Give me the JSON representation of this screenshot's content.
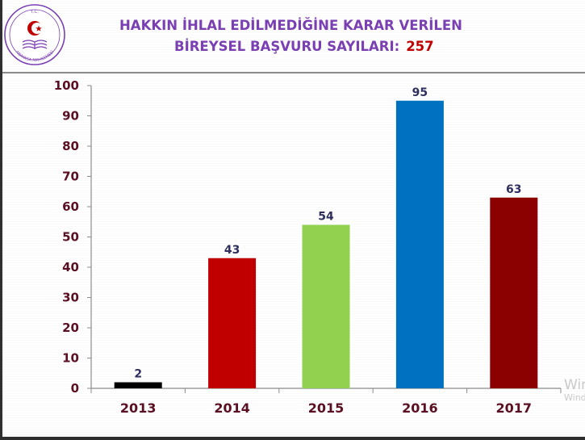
{
  "logo": {
    "top_text": "T.C.",
    "bottom_text": "ANAYASA MAHKEMESİ",
    "icon": "crescent-star-book-emblem",
    "colors": {
      "ring": "#7a3fb3",
      "emblem": "#c00000"
    }
  },
  "header": {
    "title_line1": "HAKKIN İHLAL EDİLMEDİĞİNE KARAR VERİLEN",
    "title_line2": "BİREYSEL BAŞVURU SAYILARI:",
    "total": "257"
  },
  "watermark": {
    "line1": "Windows'u Etkinleştir",
    "line2": "Windows'u etkinleştirmek için Ayarlar'a gidin."
  },
  "chart_data": {
    "type": "bar",
    "categories": [
      "2013",
      "2014",
      "2015",
      "2016",
      "2017"
    ],
    "values": [
      2,
      43,
      54,
      95,
      63
    ],
    "value_labels": [
      "2",
      "43",
      "54",
      "95",
      "63"
    ],
    "bar_colors": [
      "#000000",
      "#c00000",
      "#92d050",
      "#0070c0",
      "#8b0000"
    ],
    "ylim": [
      0,
      100
    ],
    "yticks": [
      0,
      10,
      20,
      30,
      40,
      50,
      60,
      70,
      80,
      90,
      100
    ],
    "ytick_labels": [
      "0",
      "10",
      "20",
      "30",
      "40",
      "50",
      "60",
      "70",
      "80",
      "90",
      "100"
    ],
    "grid": false,
    "legend": "none",
    "xlabel": "",
    "ylabel": ""
  }
}
